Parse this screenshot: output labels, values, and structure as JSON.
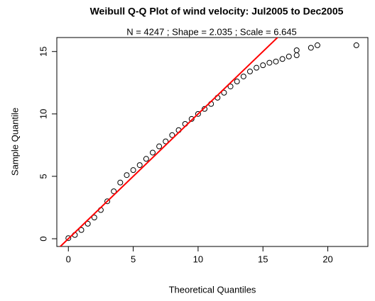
{
  "chart_data": {
    "type": "scatter",
    "title": "Weibull Q-Q Plot of wind velocity:  Jul2005 to Dec2005",
    "subtitle": "N =  4247 ; Shape =  2.035 ; Scale =  6.645",
    "x_label": "Theoretical Quantiles",
    "y_label": "Sample Quantile",
    "x": [
      0,
      0.5,
      1,
      1.5,
      2,
      2.5,
      3,
      3.5,
      4,
      4.5,
      5,
      5.5,
      6,
      6.5,
      7,
      7.5,
      8,
      8.5,
      9,
      9.5,
      10,
      10.5,
      11,
      11.5,
      12,
      12.5,
      13,
      13.5,
      14,
      14.5,
      15,
      15.5,
      16,
      16.5,
      17,
      17.6,
      17.6,
      18.7,
      19.2,
      22.2
    ],
    "values": [
      0.05,
      0.3,
      0.7,
      1.2,
      1.7,
      2.3,
      3.0,
      3.8,
      4.5,
      5.1,
      5.5,
      5.9,
      6.4,
      6.9,
      7.4,
      7.8,
      8.3,
      8.7,
      9.2,
      9.6,
      10.0,
      10.4,
      10.8,
      11.3,
      11.7,
      12.2,
      12.6,
      13.0,
      13.4,
      13.7,
      13.9,
      14.1,
      14.2,
      14.4,
      14.6,
      14.7,
      15.1,
      15.3,
      15.5,
      15.5
    ],
    "color": "#000000",
    "reference_line": {
      "x": [
        -1,
        17
      ],
      "y": [
        -1,
        17
      ],
      "color": "#ff0000"
    },
    "xlim": [
      -0.89,
      23.09
    ],
    "ylim": [
      -0.62,
      16.12
    ],
    "xticks": [
      0,
      5,
      10,
      15,
      20
    ],
    "yticks": [
      0,
      5,
      10,
      15
    ]
  }
}
